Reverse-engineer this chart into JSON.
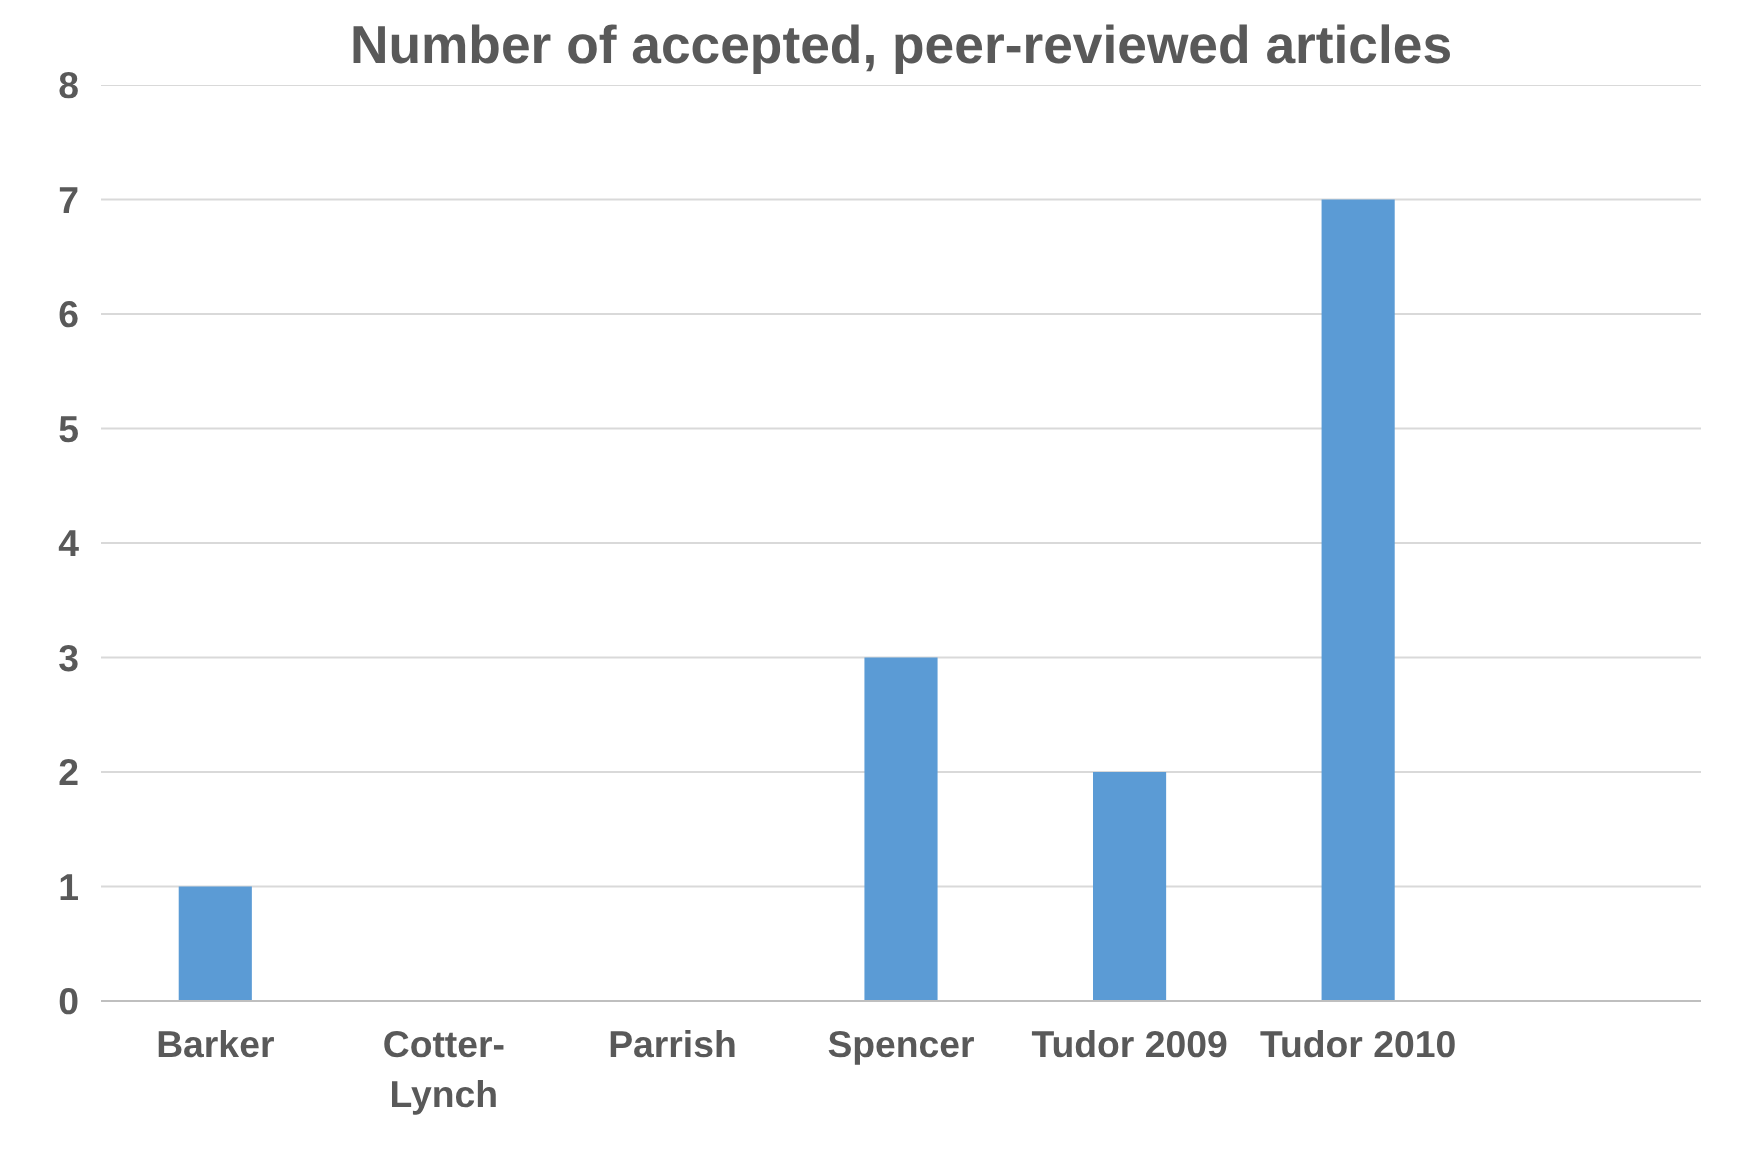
{
  "chart_data": {
    "type": "bar",
    "title": "Number of accepted, peer-reviewed articles",
    "categories": [
      "Barker",
      "Cotter-Lynch",
      "Parrish",
      "Spencer",
      "Tudor 2009",
      "Tudor 2010",
      null
    ],
    "values": [
      1,
      0,
      0,
      3,
      2,
      7,
      null
    ],
    "color": "#5b9bd5",
    "ylim": [
      0,
      8
    ],
    "yticks": [
      0,
      1,
      2,
      3,
      4,
      5,
      6,
      7,
      8
    ],
    "grid": "y"
  }
}
